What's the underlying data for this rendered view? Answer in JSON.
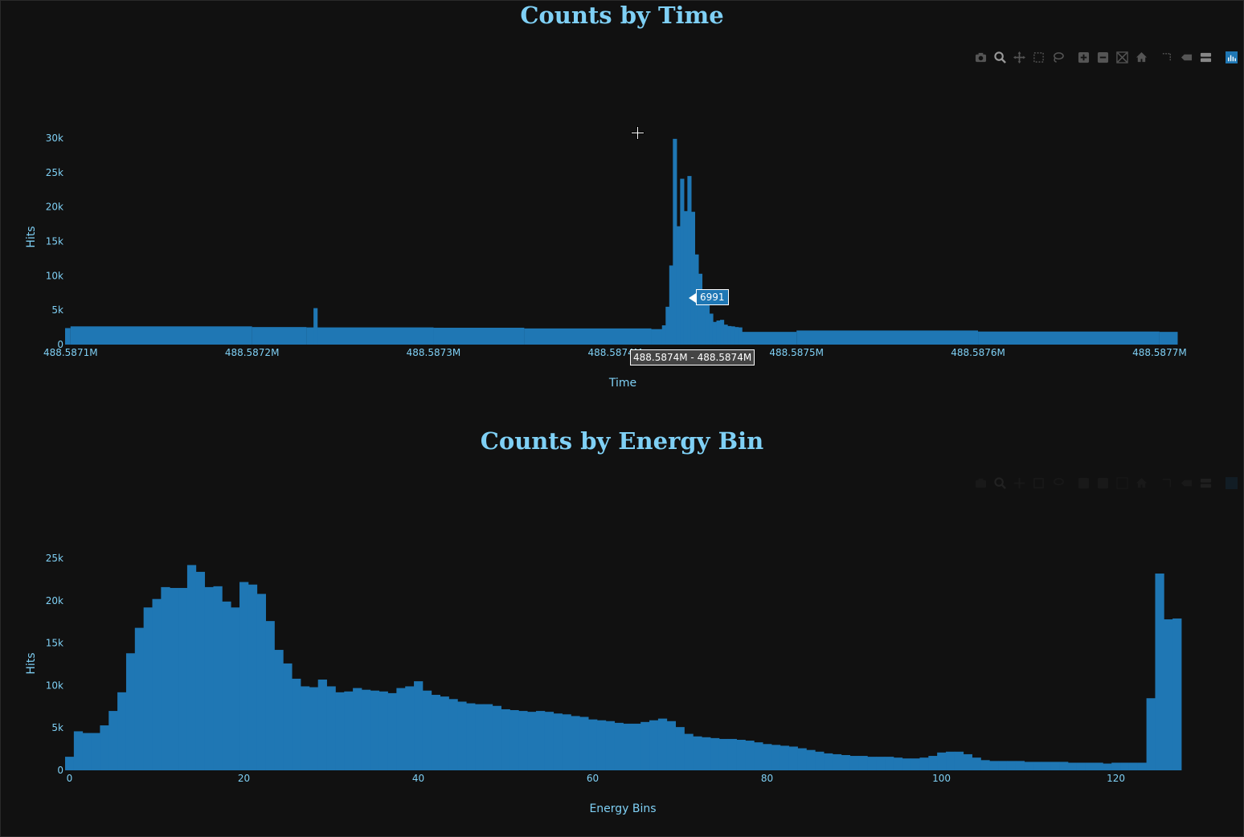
{
  "colors": {
    "background": "#111111",
    "bar": "#1f77b4",
    "text": "#7fd0f5"
  },
  "chart_data": [
    {
      "type": "bar",
      "title": "Counts by Time",
      "xlabel": "Time",
      "ylabel": "Hits",
      "xlim": [
        488587097,
        488587712
      ],
      "ylim": [
        0,
        30000
      ],
      "xticks": [
        {
          "v": 488587100,
          "label": "488.5871M"
        },
        {
          "v": 488587200,
          "label": "488.5872M"
        },
        {
          "v": 488587300,
          "label": "488.5873M"
        },
        {
          "v": 488587400,
          "label": "488.5874M"
        },
        {
          "v": 488587500,
          "label": "488.5875M"
        },
        {
          "v": 488587600,
          "label": "488.5876M"
        },
        {
          "v": 488587700,
          "label": "488.5877M"
        }
      ],
      "yticks": [
        {
          "v": 0,
          "label": "0"
        },
        {
          "v": 5000,
          "label": "5k"
        },
        {
          "v": 10000,
          "label": "10k"
        },
        {
          "v": 15000,
          "label": "15k"
        },
        {
          "v": 20000,
          "label": "20k"
        },
        {
          "v": 25000,
          "label": "25k"
        },
        {
          "v": 30000,
          "label": "30k"
        }
      ],
      "segments": [
        {
          "x": 488587097,
          "y": 2400
        },
        {
          "x": 488587100,
          "y": 2650
        },
        {
          "x": 488587200,
          "y": 2550
        },
        {
          "x": 488587230,
          "y": 2500
        },
        {
          "x": 488587300,
          "y": 2450
        },
        {
          "x": 488587350,
          "y": 2350
        },
        {
          "x": 488587420,
          "y": 2250
        },
        {
          "x": 488587432,
          "y": 1850
        },
        {
          "x": 488587500,
          "y": 2050
        },
        {
          "x": 488587600,
          "y": 1900
        },
        {
          "x": 488587700,
          "y": 1850
        },
        {
          "x": 488587710,
          "y": 1600
        }
      ],
      "bars": [
        {
          "x": 488587234,
          "y": 5300
        },
        {
          "x": 488587426,
          "y": 2800
        },
        {
          "x": 488587428,
          "y": 5500
        },
        {
          "x": 488587430,
          "y": 11500
        },
        {
          "x": 488587432,
          "y": 29900
        },
        {
          "x": 488587434,
          "y": 17200
        },
        {
          "x": 488587436,
          "y": 24100
        },
        {
          "x": 488587438,
          "y": 19400
        },
        {
          "x": 488587440,
          "y": 24500
        },
        {
          "x": 488587442,
          "y": 19300
        },
        {
          "x": 488587444,
          "y": 13100
        },
        {
          "x": 488587446,
          "y": 10300
        },
        {
          "x": 488587448,
          "y": 6991
        },
        {
          "x": 488587450,
          "y": 6400
        },
        {
          "x": 488587452,
          "y": 4500
        },
        {
          "x": 488587454,
          "y": 3300
        },
        {
          "x": 488587456,
          "y": 3500
        },
        {
          "x": 488587458,
          "y": 3600
        },
        {
          "x": 488587460,
          "y": 2900
        },
        {
          "x": 488587462,
          "y": 2700
        },
        {
          "x": 488587464,
          "y": 2650
        },
        {
          "x": 488587466,
          "y": 2550
        },
        {
          "x": 488587468,
          "y": 2500
        }
      ],
      "hover": {
        "value": "6991",
        "x_label": "488.5874M - 488.5874M"
      }
    },
    {
      "type": "bar",
      "title": "Counts by Energy Bin",
      "xlabel": "Energy Bins",
      "ylabel": "Hits",
      "xlim": [
        -0.5,
        127.5
      ],
      "ylim": [
        0,
        25000
      ],
      "xticks": [
        {
          "v": 0,
          "label": "0"
        },
        {
          "v": 20,
          "label": "20"
        },
        {
          "v": 40,
          "label": "40"
        },
        {
          "v": 60,
          "label": "60"
        },
        {
          "v": 80,
          "label": "80"
        },
        {
          "v": 100,
          "label": "100"
        },
        {
          "v": 120,
          "label": "120"
        }
      ],
      "yticks": [
        {
          "v": 0,
          "label": "0"
        },
        {
          "v": 5000,
          "label": "5k"
        },
        {
          "v": 10000,
          "label": "10k"
        },
        {
          "v": 15000,
          "label": "15k"
        },
        {
          "v": 20000,
          "label": "20k"
        },
        {
          "v": 25000,
          "label": "25k"
        }
      ],
      "values": [
        1600,
        4600,
        4400,
        4400,
        5300,
        7000,
        9200,
        13800,
        16800,
        19200,
        20200,
        21600,
        21500,
        21500,
        24200,
        23400,
        21600,
        21700,
        19900,
        19200,
        22200,
        21900,
        20800,
        17600,
        14200,
        12600,
        10800,
        9900,
        9800,
        10700,
        9900,
        9200,
        9300,
        9700,
        9500,
        9400,
        9300,
        9100,
        9700,
        9900,
        10500,
        9400,
        8900,
        8700,
        8400,
        8100,
        7900,
        7800,
        7800,
        7600,
        7200,
        7100,
        7000,
        6900,
        7000,
        6900,
        6700,
        6600,
        6400,
        6300,
        6000,
        5900,
        5800,
        5600,
        5500,
        5500,
        5700,
        5900,
        6100,
        5800,
        5100,
        4300,
        4000,
        3900,
        3800,
        3700,
        3700,
        3600,
        3500,
        3300,
        3100,
        3000,
        2900,
        2800,
        2600,
        2400,
        2200,
        2000,
        1900,
        1800,
        1700,
        1700,
        1600,
        1600,
        1600,
        1500,
        1400,
        1400,
        1500,
        1700,
        2100,
        2200,
        2200,
        1900,
        1500,
        1200,
        1100,
        1100,
        1100,
        1100,
        1000,
        1000,
        1000,
        1000,
        1000,
        900,
        900,
        900,
        900,
        800,
        900,
        900,
        900,
        900,
        8500,
        23200,
        17800,
        17900
      ]
    }
  ],
  "modebar": [
    "camera-icon",
    "zoom-icon",
    "pan-icon",
    "box-select-icon",
    "lasso-select-icon",
    "zoom-in-icon",
    "zoom-out-icon",
    "autoscale-icon",
    "reset-axes-icon",
    "spike-lines-icon",
    "hover-closest-icon",
    "hover-compare-icon",
    "plotly-logo-icon"
  ]
}
